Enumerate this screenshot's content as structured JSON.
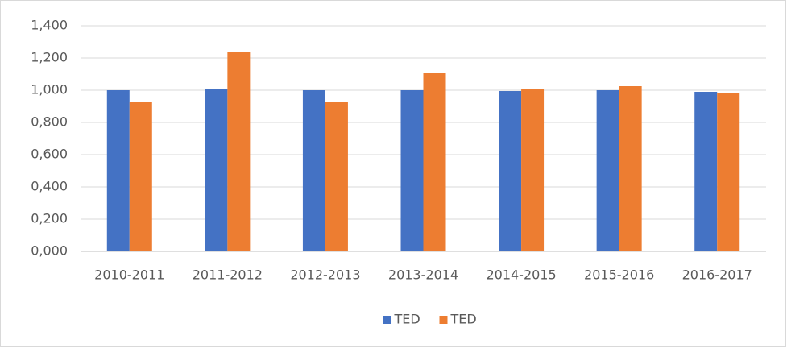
{
  "chart_data": {
    "type": "bar",
    "categories": [
      "2010-2011",
      "2011-2012",
      "2012-2013",
      "2013-2014",
      "2014-2015",
      "2015-2016",
      "2016-2017"
    ],
    "series": [
      {
        "name": "TED",
        "color": "#4472c4",
        "values": [
          1.0,
          1.005,
          1.0,
          1.0,
          0.995,
          1.0,
          0.99
        ]
      },
      {
        "name": "TED",
        "color": "#ed7d31",
        "values": [
          0.925,
          1.235,
          0.93,
          1.105,
          1.005,
          1.025,
          0.985
        ]
      }
    ],
    "ylim": [
      0,
      1.4
    ],
    "yticks": [
      {
        "value": 0,
        "label": "0,000"
      },
      {
        "value": 0.2,
        "label": "0,200"
      },
      {
        "value": 0.4,
        "label": "0,400"
      },
      {
        "value": 0.6,
        "label": "0,600"
      },
      {
        "value": 0.8,
        "label": "0,800"
      },
      {
        "value": 1.0,
        "label": "1,000"
      },
      {
        "value": 1.2,
        "label": "1,200"
      },
      {
        "value": 1.4,
        "label": "1,400"
      }
    ],
    "grid": true,
    "legend": "bottom"
  }
}
